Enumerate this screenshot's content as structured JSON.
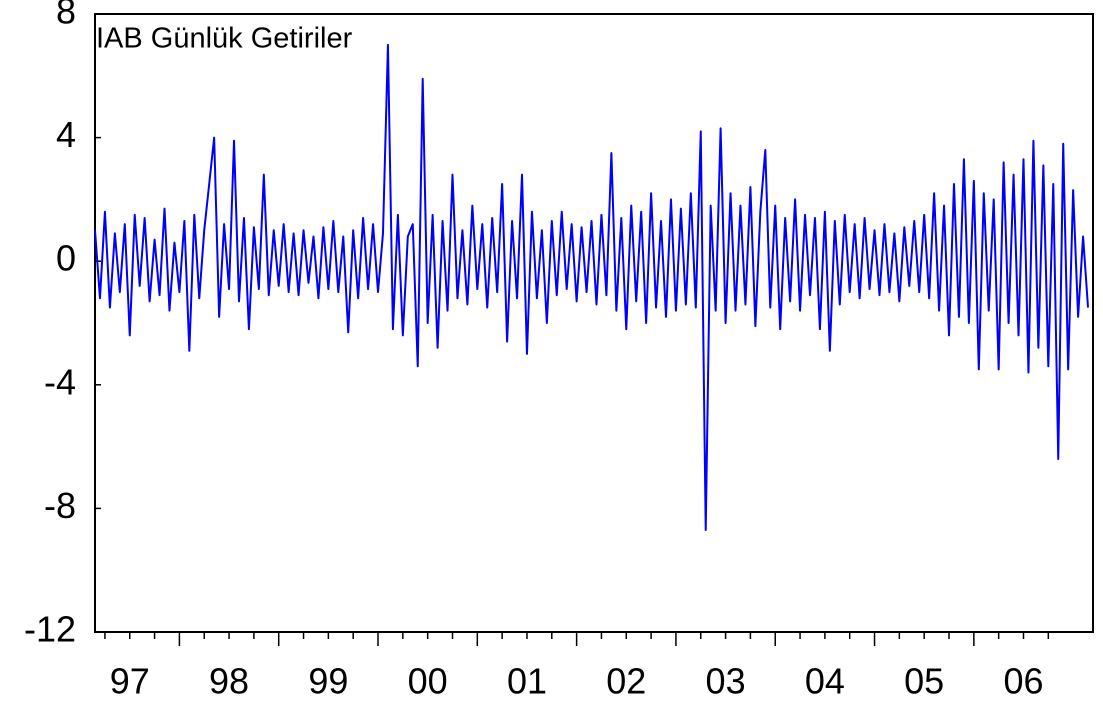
{
  "chart_data": {
    "type": "line",
    "title": "IAB Günlük Getiriler",
    "xlim": [
      1997.15,
      2007.2
    ],
    "ylim": [
      -12,
      8
    ],
    "yticks": [
      -12,
      -8,
      -4,
      0,
      4,
      8
    ],
    "xticks": [
      {
        "value": 1997.5,
        "label": "97"
      },
      {
        "value": 1998.5,
        "label": "98"
      },
      {
        "value": 1999.5,
        "label": "99"
      },
      {
        "value": 2000.5,
        "label": "00"
      },
      {
        "value": 2001.5,
        "label": "01"
      },
      {
        "value": 2002.5,
        "label": "02"
      },
      {
        "value": 2003.5,
        "label": "03"
      },
      {
        "value": 2004.5,
        "label": "04"
      },
      {
        "value": 2005.5,
        "label": "05"
      },
      {
        "value": 2006.5,
        "label": "06"
      }
    ],
    "x": [
      1997.15,
      1997.2,
      1997.25,
      1997.3,
      1997.35,
      1997.4,
      1997.45,
      1997.5,
      1997.55,
      1997.6,
      1997.65,
      1997.7,
      1997.75,
      1997.8,
      1997.85,
      1997.9,
      1997.95,
      1998.0,
      1998.05,
      1998.1,
      1998.15,
      1998.2,
      1998.25,
      1998.3,
      1998.35,
      1998.4,
      1998.45,
      1998.5,
      1998.55,
      1998.6,
      1998.65,
      1998.7,
      1998.75,
      1998.8,
      1998.85,
      1998.9,
      1998.95,
      1999.0,
      1999.05,
      1999.1,
      1999.15,
      1999.2,
      1999.25,
      1999.3,
      1999.35,
      1999.4,
      1999.45,
      1999.5,
      1999.55,
      1999.6,
      1999.65,
      1999.7,
      1999.75,
      1999.8,
      1999.85,
      1999.9,
      1999.95,
      2000.0,
      2000.05,
      2000.1,
      2000.15,
      2000.2,
      2000.25,
      2000.3,
      2000.35,
      2000.4,
      2000.45,
      2000.5,
      2000.55,
      2000.6,
      2000.65,
      2000.7,
      2000.75,
      2000.8,
      2000.85,
      2000.9,
      2000.95,
      2001.0,
      2001.05,
      2001.1,
      2001.15,
      2001.2,
      2001.25,
      2001.3,
      2001.35,
      2001.4,
      2001.45,
      2001.5,
      2001.55,
      2001.6,
      2001.65,
      2001.7,
      2001.75,
      2001.8,
      2001.85,
      2001.9,
      2001.95,
      2002.0,
      2002.05,
      2002.1,
      2002.15,
      2002.2,
      2002.25,
      2002.3,
      2002.35,
      2002.4,
      2002.45,
      2002.5,
      2002.55,
      2002.6,
      2002.65,
      2002.7,
      2002.75,
      2002.8,
      2002.85,
      2002.9,
      2002.95,
      2003.0,
      2003.05,
      2003.1,
      2003.15,
      2003.2,
      2003.25,
      2003.3,
      2003.35,
      2003.4,
      2003.45,
      2003.5,
      2003.55,
      2003.6,
      2003.65,
      2003.7,
      2003.75,
      2003.8,
      2003.85,
      2003.9,
      2003.95,
      2004.0,
      2004.05,
      2004.1,
      2004.15,
      2004.2,
      2004.25,
      2004.3,
      2004.35,
      2004.4,
      2004.45,
      2004.5,
      2004.55,
      2004.6,
      2004.65,
      2004.7,
      2004.75,
      2004.8,
      2004.85,
      2004.9,
      2004.95,
      2005.0,
      2005.05,
      2005.1,
      2005.15,
      2005.2,
      2005.25,
      2005.3,
      2005.35,
      2005.4,
      2005.45,
      2005.5,
      2005.55,
      2005.6,
      2005.65,
      2005.7,
      2005.75,
      2005.8,
      2005.85,
      2005.9,
      2005.95,
      2006.0,
      2006.05,
      2006.1,
      2006.15,
      2006.2,
      2006.25,
      2006.3,
      2006.35,
      2006.4,
      2006.45,
      2006.5,
      2006.55,
      2006.6,
      2006.65,
      2006.7,
      2006.75,
      2006.8,
      2006.85,
      2006.9,
      2006.95,
      2007.0,
      2007.05,
      2007.1,
      2007.15
    ],
    "series": [
      {
        "color": "#0000ff",
        "values": [
          1.0,
          -1.2,
          1.6,
          -1.5,
          0.9,
          -1.0,
          1.2,
          -2.4,
          1.5,
          -0.8,
          1.4,
          -1.3,
          0.7,
          -1.1,
          1.7,
          -1.6,
          0.6,
          -1.0,
          1.3,
          -2.9,
          1.5,
          -1.2,
          1.0,
          2.5,
          4.0,
          -1.8,
          1.2,
          -0.9,
          3.9,
          -1.3,
          1.4,
          -2.2,
          1.1,
          -0.9,
          2.8,
          -1.1,
          1.0,
          -0.8,
          1.2,
          -1.0,
          0.9,
          -1.1,
          1.0,
          -0.7,
          0.8,
          -1.2,
          1.1,
          -0.9,
          1.3,
          -1.0,
          0.8,
          -2.3,
          1.0,
          -1.2,
          1.4,
          -0.9,
          1.2,
          -1.0,
          0.9,
          7.0,
          -2.2,
          1.5,
          -2.4,
          0.8,
          1.2,
          -3.4,
          5.9,
          -2.0,
          1.5,
          -2.8,
          1.3,
          -1.6,
          2.8,
          -1.2,
          1.0,
          -1.4,
          1.8,
          -0.9,
          1.2,
          -1.5,
          1.4,
          -1.0,
          2.5,
          -2.6,
          1.3,
          -1.2,
          2.8,
          -3.0,
          1.6,
          -1.2,
          1.0,
          -2.0,
          1.3,
          -1.1,
          1.6,
          -0.9,
          1.2,
          -1.3,
          1.1,
          -1.0,
          1.3,
          -1.4,
          1.5,
          -1.1,
          3.5,
          -1.6,
          1.4,
          -2.2,
          1.8,
          -1.3,
          1.6,
          -2.0,
          2.2,
          -1.5,
          1.3,
          -1.8,
          2.0,
          -1.6,
          1.7,
          -1.4,
          2.2,
          -1.5,
          4.2,
          -8.7,
          1.8,
          -1.6,
          4.3,
          -2.0,
          2.2,
          -1.6,
          1.8,
          -1.4,
          2.4,
          -2.1,
          1.6,
          3.6,
          -1.5,
          1.8,
          -2.2,
          1.4,
          -1.3,
          2.0,
          -1.6,
          1.5,
          -1.1,
          1.4,
          -2.2,
          1.6,
          -2.9,
          1.3,
          -1.4,
          1.5,
          -1.0,
          1.2,
          -1.2,
          1.4,
          -0.9,
          1.0,
          -1.1,
          1.2,
          -1.0,
          0.9,
          -1.3,
          1.1,
          -0.8,
          1.3,
          -1.0,
          1.5,
          -1.2,
          2.2,
          -1.6,
          1.8,
          -2.4,
          2.5,
          -1.8,
          3.3,
          -2.0,
          2.6,
          -3.5,
          2.2,
          -1.6,
          2.0,
          -3.5,
          3.2,
          -2.0,
          2.8,
          -2.4,
          3.3,
          -3.6,
          3.9,
          -2.8,
          3.1,
          -3.4,
          2.5,
          -6.4,
          3.8,
          -3.5,
          2.3,
          -1.8,
          0.8,
          -1.5
        ]
      }
    ]
  }
}
